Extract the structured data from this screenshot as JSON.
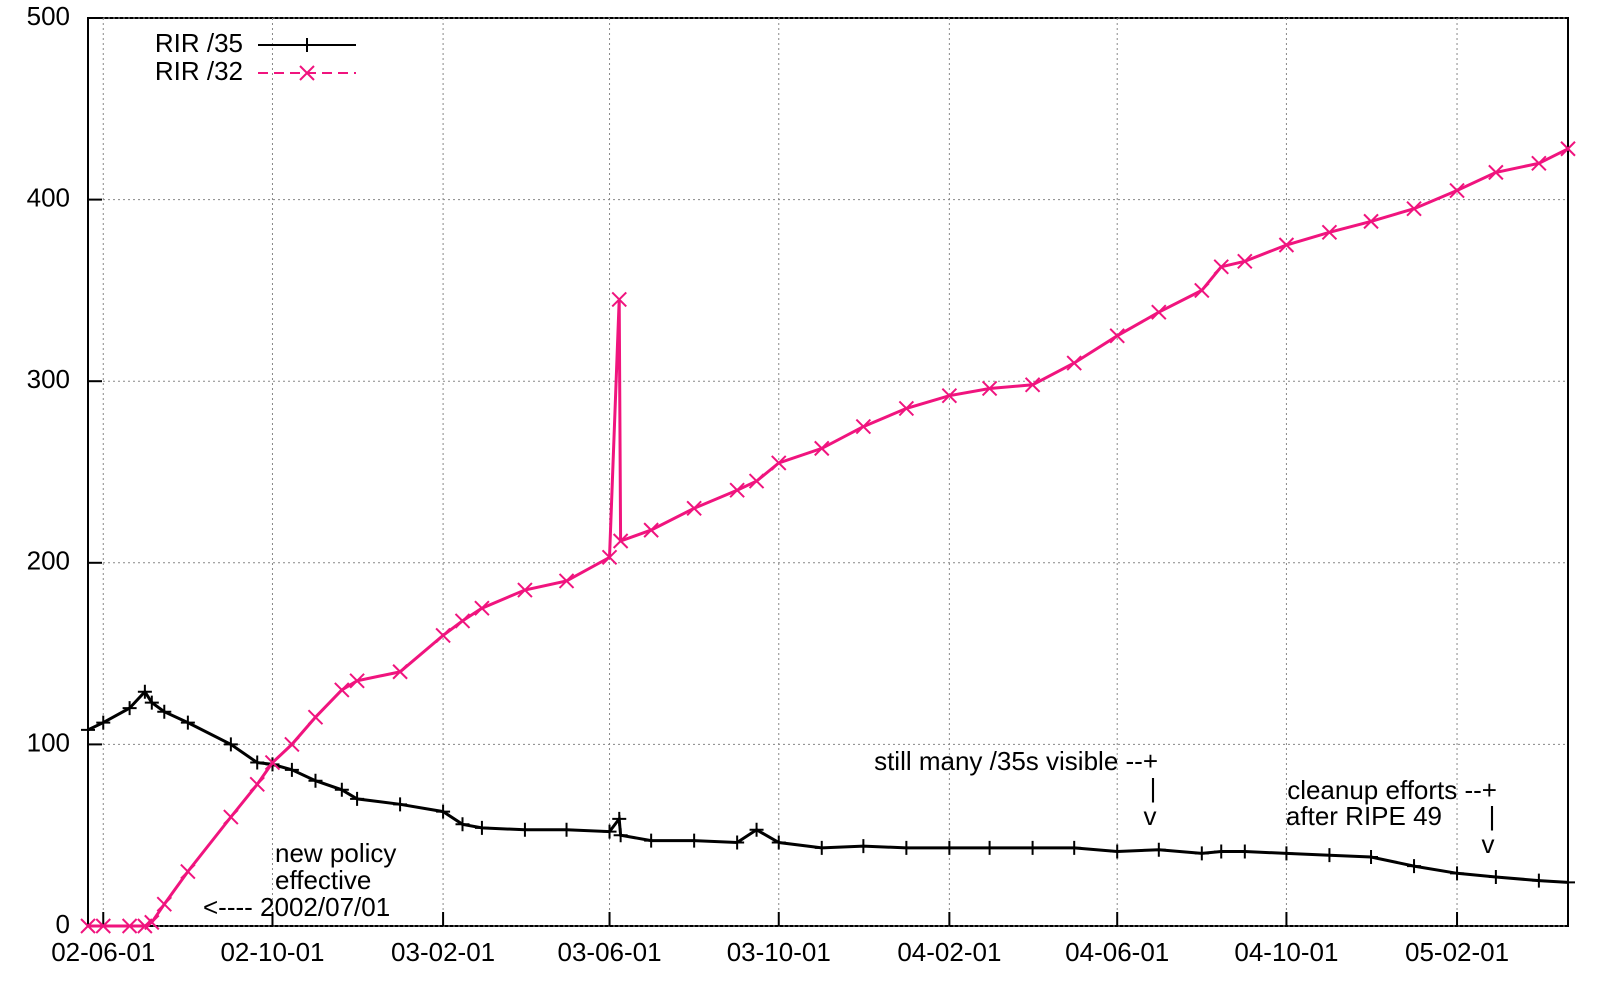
{
  "chart_data": {
    "type": "line",
    "x": [
      "02-05-21",
      "02-06-01",
      "02-06-20",
      "02-07-01",
      "02-07-06",
      "02-07-15",
      "02-08-01",
      "02-09-01",
      "02-09-20",
      "02-10-01",
      "02-10-15",
      "02-11-01",
      "02-11-20",
      "02-12-01",
      "03-01-01",
      "03-02-01",
      "03-02-15",
      "03-03-01",
      "03-04-01",
      "03-05-01",
      "03-06-01",
      "03-06-08",
      "03-06-09",
      "03-07-01",
      "03-08-01",
      "03-09-01",
      "03-09-15",
      "03-10-01",
      "03-11-01",
      "03-12-01",
      "04-01-01",
      "04-02-01",
      "04-03-01",
      "04-04-01",
      "04-05-01",
      "04-06-01",
      "04-07-01",
      "04-08-01",
      "04-08-15",
      "04-09-01",
      "04-10-01",
      "04-11-01",
      "04-12-01",
      "05-01-01",
      "05-02-01",
      "05-03-01",
      "05-04-01",
      "05-04-22"
    ],
    "series": [
      {
        "name": "RIR /35",
        "color": "#000000",
        "marker": "plus",
        "dash": false,
        "values": [
          108,
          112,
          120,
          129,
          123,
          118,
          112,
          100,
          90,
          89,
          86,
          80,
          75,
          70,
          67,
          63,
          56,
          54,
          53,
          53,
          52,
          59,
          50,
          47,
          47,
          46,
          53,
          46,
          43,
          44,
          43,
          43,
          43,
          43,
          43,
          41,
          42,
          40,
          41,
          41,
          40,
          39,
          38,
          33,
          29,
          27,
          25,
          24
        ]
      },
      {
        "name": "RIR /32",
        "color": "#f0147e",
        "marker": "cross",
        "dash": true,
        "values": [
          0,
          0,
          0,
          0,
          2,
          12,
          30,
          60,
          78,
          90,
          100,
          115,
          130,
          135,
          140,
          160,
          168,
          175,
          185,
          190,
          203,
          345,
          212,
          218,
          230,
          240,
          245,
          255,
          263,
          275,
          285,
          292,
          296,
          298,
          310,
          325,
          338,
          350,
          363,
          366,
          375,
          382,
          388,
          395,
          405,
          415,
          420,
          428
        ]
      }
    ],
    "xlim": [
      "02-05-21",
      "05-04-22"
    ],
    "xticks": [
      "02-06-01",
      "02-10-01",
      "03-02-01",
      "03-06-01",
      "03-10-01",
      "04-02-01",
      "04-06-01",
      "04-10-01",
      "05-02-01"
    ],
    "ylim": [
      0,
      500
    ],
    "yticks": [
      0,
      100,
      200,
      300,
      400,
      500
    ],
    "grid": true,
    "legend": "top-left",
    "annotations": [
      [
        "new policy",
        "effective",
        "<---- 2002/07/01"
      ],
      [
        "still many /35s visible --+",
        "|",
        "v"
      ],
      [
        "cleanup efforts --+",
        "after RIPE 49",
        "|",
        "v"
      ]
    ]
  }
}
